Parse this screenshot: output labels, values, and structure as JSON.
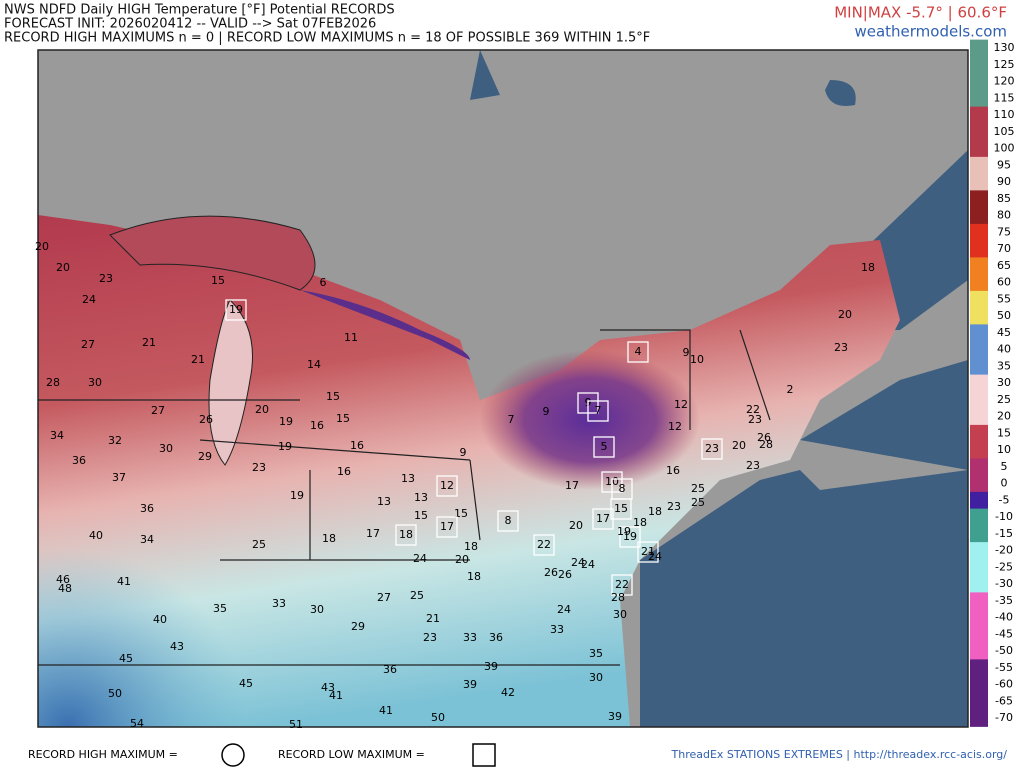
{
  "header": {
    "title": "NWS NDFD Daily HIGH Temperature [°F] Potential RECORDS",
    "init": "FORECAST INIT: 2026020412 -- VALID --> Sat 07FEB2026",
    "counts": "RECORD HIGH MAXIMUMS n = 0 | RECORD LOW MAXIMUMS n = 18 OF POSSIBLE 369 WITHIN 1.5°F",
    "minmax": "MIN|MAX -5.7° | 60.6°F",
    "site": "weathermodels.com"
  },
  "colorbar": {
    "ticks": [
      130,
      125,
      120,
      115,
      110,
      105,
      100,
      95,
      90,
      85,
      80,
      75,
      70,
      65,
      60,
      55,
      50,
      45,
      40,
      35,
      30,
      25,
      20,
      15,
      10,
      5,
      0,
      -5,
      -10,
      -15,
      -20,
      -25,
      -30,
      -35,
      -40,
      -45,
      -50,
      -55,
      -60,
      -65,
      -70
    ]
  },
  "stations": {
    "values": [
      20,
      20,
      23,
      15,
      19,
      6,
      24,
      27,
      21,
      21,
      11,
      14,
      28,
      30,
      27,
      26,
      20,
      15,
      15,
      19,
      16,
      34,
      32,
      30,
      19,
      16,
      36,
      37,
      29,
      23,
      16,
      13,
      19,
      13,
      13,
      36,
      34,
      40,
      25,
      18,
      17,
      18,
      15,
      15,
      17,
      12,
      9,
      7,
      9,
      9,
      7,
      5,
      4,
      9,
      10,
      12,
      12,
      22,
      23,
      23,
      20,
      28,
      23,
      26,
      16,
      17,
      10,
      8,
      8,
      20,
      17,
      15,
      18,
      18,
      23,
      25,
      25,
      19,
      22,
      18,
      20,
      18,
      24,
      25,
      21,
      27,
      23,
      33,
      36,
      33,
      35,
      24,
      21,
      24,
      22,
      28,
      30,
      29,
      30,
      33,
      35,
      40,
      43,
      41,
      46,
      48,
      45,
      45,
      50,
      43,
      41,
      36,
      39,
      39,
      42,
      30,
      41,
      50,
      51,
      54,
      39,
      26,
      26,
      24,
      19,
      24,
      18,
      20,
      23,
      2
    ],
    "boxed": [
      false,
      false,
      false,
      false,
      true,
      false,
      false,
      false,
      false,
      false,
      false,
      false,
      false,
      false,
      false,
      false,
      false,
      false,
      false,
      false,
      false,
      false,
      false,
      false,
      false,
      false,
      false,
      false,
      false,
      false,
      false,
      false,
      false,
      false,
      false,
      false,
      false,
      false,
      false,
      false,
      false,
      true,
      false,
      false,
      true,
      true,
      false,
      false,
      false,
      true,
      true,
      true,
      true,
      false,
      false,
      false,
      false,
      false,
      false,
      true,
      false,
      false,
      false,
      false,
      false,
      false,
      true,
      true,
      true,
      false,
      true,
      true,
      false,
      false,
      false,
      false,
      false,
      true,
      true,
      false,
      false,
      false,
      false,
      false,
      false,
      false,
      false,
      false,
      false,
      false,
      false,
      false,
      true,
      false,
      true,
      false,
      false,
      false,
      false,
      false,
      false,
      false,
      false,
      false,
      false,
      false,
      false,
      false,
      false,
      false,
      false,
      false,
      false,
      false,
      false,
      false,
      false,
      false,
      false,
      false,
      false,
      false,
      false,
      false,
      false,
      false,
      false,
      false,
      false,
      false
    ]
  },
  "footer": {
    "high_legend": "RECORD HIGH MAXIMUM =",
    "low_legend": "RECORD LOW MAXIMUM =",
    "source": "ThreadEx STATIONS EXTREMES | http://threadex.rcc-acis.org/"
  }
}
